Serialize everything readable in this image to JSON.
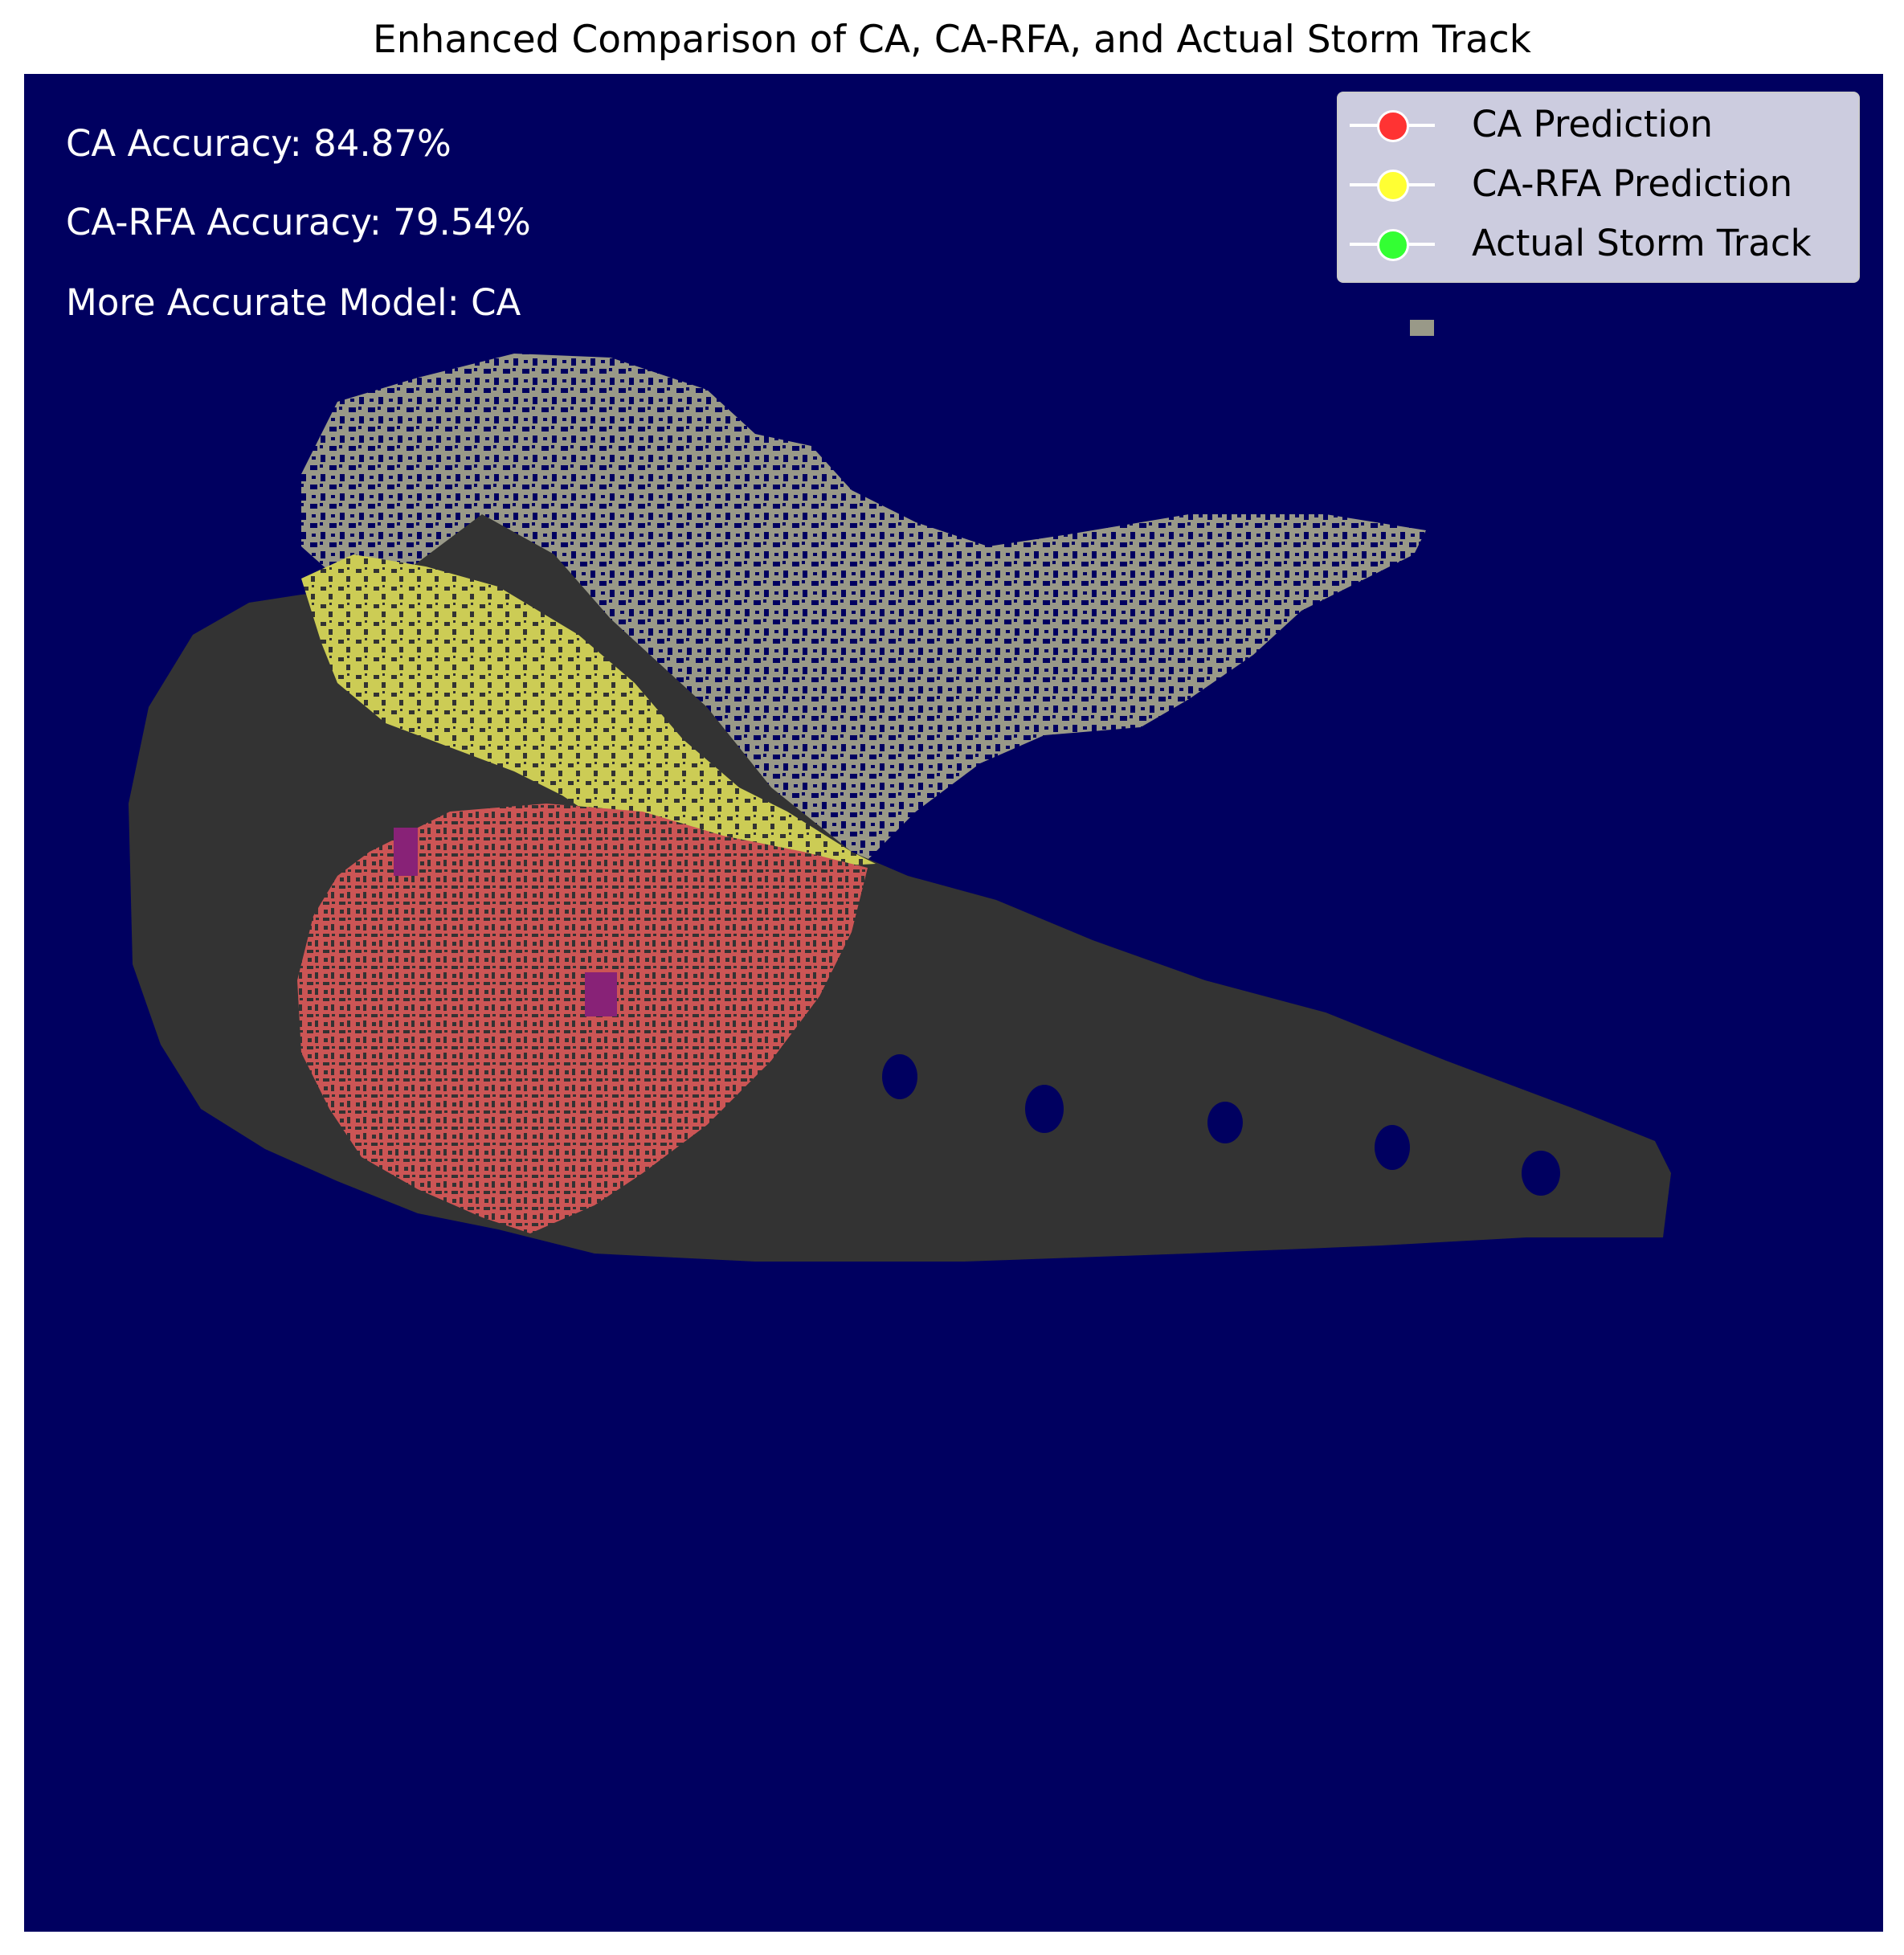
{
  "chart_data": {
    "type": "heatmap",
    "title": "Enhanced Comparison of CA, CA-RFA, and Actual Storm Track",
    "xlabel": "",
    "ylabel": "",
    "grid": false,
    "axes_visible": false,
    "legend_position": "top-right",
    "background_color": "#000060",
    "series": [
      {
        "name": "CA Prediction",
        "color": "#ff3333"
      },
      {
        "name": "CA-RFA Prediction",
        "color": "#ffff33"
      },
      {
        "name": "Actual Storm Track",
        "color": "#33ff33"
      }
    ],
    "region_colors": {
      "overlap_background": "#333333",
      "ca_region": "#cc5555",
      "ca_rfa_region": "#cccc55",
      "actual_region": "#999988",
      "mixed": "#882277"
    },
    "annotations": [
      "CA Accuracy: 84.87%",
      "CA-RFA Accuracy: 79.54%",
      "More Accurate Model: CA"
    ],
    "stats": {
      "ca_accuracy_percent": 84.87,
      "ca_rfa_accuracy_percent": 79.54,
      "more_accurate_model": "CA"
    }
  }
}
